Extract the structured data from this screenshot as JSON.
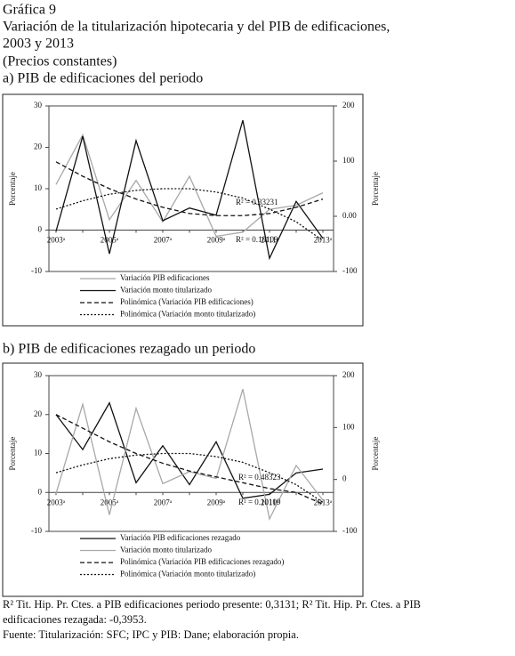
{
  "header": {
    "lines": [
      "Gráfica 9",
      "Variación de la titularización hipotecaria y del PIB de edificaciones,",
      "2003 y 2013",
      "(Precios constantes)"
    ]
  },
  "chart_data": [
    {
      "type": "line",
      "title": "a) PIB de edificaciones del periodo",
      "categories": [
        "2003ᵃ",
        null,
        "2005ᵃ",
        null,
        "2007ᵃ",
        null,
        "2009ᵃ",
        null,
        "2011ᵃ",
        null,
        "2013ᵃ"
      ],
      "ylabel": "Porcentaje",
      "y2label": "Porcentaje",
      "ylim": [
        -10,
        30
      ],
      "yticks": [
        -10,
        0,
        10,
        20,
        30
      ],
      "y2lim": [
        -100,
        200
      ],
      "y2ticks": [
        -100,
        {
          "value": 0,
          "label": "0.00"
        },
        100,
        200
      ],
      "series": [
        {
          "name": "Variación PIB edificaciones",
          "color": "#a8a8a8",
          "dash": "solid",
          "values": [
            11,
            23,
            2.5,
            12,
            2,
            13,
            -1.5,
            -0.5,
            5,
            6,
            9
          ]
        },
        {
          "name": "Variación monto titularizado",
          "color": "#111111",
          "dash": "solid",
          "axis": "y2",
          "values": [
            -27,
            145,
            -68,
            137,
            -8,
            15,
            2,
            174,
            -76,
            27,
            -40
          ]
        },
        {
          "name": "Polinómica (Variación PIB edificaciones)",
          "color": "#111111",
          "dash": "dashed",
          "values": [
            16.5,
            13,
            10,
            7.5,
            5.5,
            4,
            3.5,
            3.5,
            4,
            5.5,
            7.5
          ]
        },
        {
          "name": "Polinómica (Variación monto titularizado)",
          "color": "#111111",
          "dash": "dotted",
          "axis": "y2",
          "values": [
            13,
            28,
            40,
            47,
            50,
            50,
            44,
            33,
            13,
            -10,
            -44
          ]
        }
      ],
      "annotations": [
        "R² = 0.33231",
        "R² = 0.10109"
      ]
    },
    {
      "type": "line",
      "title": "b) PIB de edificaciones rezagado un periodo",
      "categories": [
        "2003ᵃ",
        null,
        "2005ᵃ",
        null,
        "2007ᵃ",
        null,
        "2009ᵃ",
        null,
        "2011ᵃ",
        null,
        "2013ᵃ"
      ],
      "ylabel": "Porcentaje",
      "y2label": "Porcentaje",
      "ylim": [
        -10,
        30
      ],
      "yticks": [
        -10,
        0,
        10,
        20,
        30
      ],
      "y2lim": [
        -100,
        200
      ],
      "y2ticks": [
        -100,
        0,
        100,
        200
      ],
      "series": [
        {
          "name": "Variación PIB edificaciones rezagado",
          "color": "#111111",
          "dash": "solid",
          "values": [
            20,
            11,
            23,
            2.5,
            12,
            2,
            13,
            -1.5,
            -0.5,
            5,
            6
          ]
        },
        {
          "name": "Variación monto titularizado",
          "color": "#a8a8a8",
          "dash": "solid",
          "axis": "y2",
          "values": [
            -27,
            145,
            -68,
            137,
            -8,
            15,
            2,
            174,
            -76,
            27,
            -40
          ]
        },
        {
          "name": "Polinómica (Variación PIB edificaciones rezagado)",
          "color": "#111111",
          "dash": "dashed",
          "values": [
            20,
            16.5,
            13,
            10,
            7.5,
            5.5,
            4,
            2.5,
            1,
            0,
            -3
          ]
        },
        {
          "name": "Polinómica (Variación monto titularizado)",
          "color": "#111111",
          "dash": "dotted",
          "axis": "y2",
          "values": [
            13,
            28,
            40,
            47,
            50,
            50,
            44,
            33,
            13,
            -10,
            -44
          ]
        }
      ],
      "annotations": [
        "R² = 0.48323",
        "R² = 0.10109"
      ]
    }
  ],
  "notes": [
    "R² Tit. Hip. Pr. Ctes. a PIB edificaciones periodo presente: 0,3131; R² Tit. Hip. Pr. Ctes. a PIB",
    "edificaciones rezagada: -0,3953.",
    "Fuente: Titularización: SFC; IPC y PIB: Dane; elaboración propia."
  ]
}
